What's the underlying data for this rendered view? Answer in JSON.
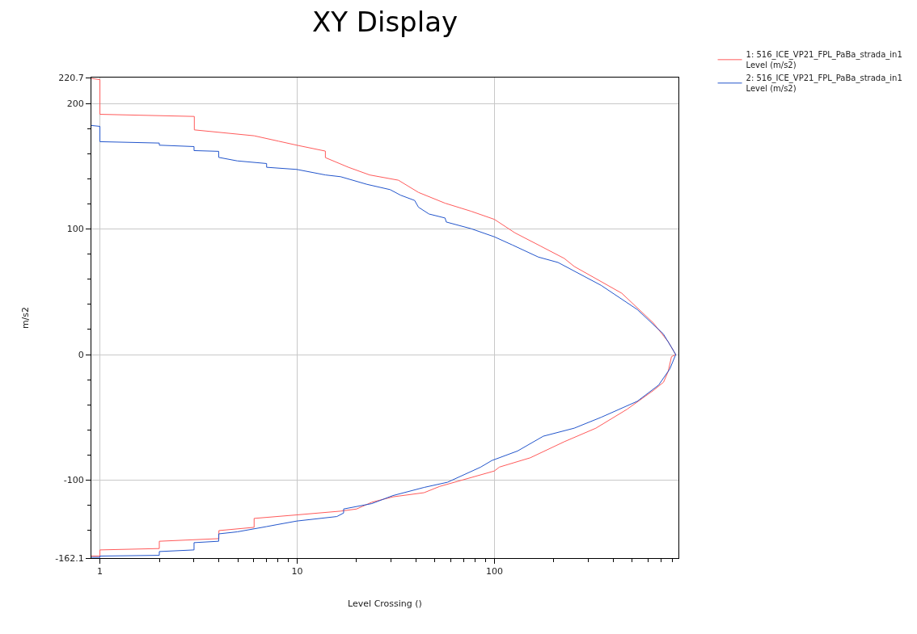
{
  "chart_data": {
    "type": "line",
    "title": "XY Display",
    "xlabel": "Level Crossing ()",
    "ylabel": "m/s2",
    "log": "x",
    "grid": true,
    "legend": "top right",
    "xlim": [
      0.905,
      857
    ],
    "xticks": [
      1,
      10,
      100,
      {
        "value": 2,
        "label": null
      },
      {
        "value": 3,
        "label": null
      },
      {
        "value": 4,
        "label": null
      },
      {
        "value": 5,
        "label": null
      },
      {
        "value": 6,
        "label": null
      },
      {
        "value": 7,
        "label": null
      },
      {
        "value": 8,
        "label": null
      },
      {
        "value": 9,
        "label": null
      },
      {
        "value": 20,
        "label": null
      },
      {
        "value": 30,
        "label": null
      },
      {
        "value": 40,
        "label": null
      },
      {
        "value": 50,
        "label": null
      },
      {
        "value": 60,
        "label": null
      },
      {
        "value": 70,
        "label": null
      },
      {
        "value": 80,
        "label": null
      },
      {
        "value": 90,
        "label": null
      },
      {
        "value": 200,
        "label": null
      },
      {
        "value": 300,
        "label": null
      },
      {
        "value": 400,
        "label": null
      },
      {
        "value": 500,
        "label": null
      },
      {
        "value": 600,
        "label": null
      },
      {
        "value": 700,
        "label": null
      },
      {
        "value": 800,
        "label": null
      }
    ],
    "ylim": [
      -162.1,
      220.7
    ],
    "yticks": [
      -162.1,
      -100,
      0,
      100,
      200,
      220.7,
      {
        "value": -140,
        "label": null
      },
      {
        "value": -120,
        "label": null
      },
      {
        "value": -80,
        "label": null
      },
      {
        "value": -60,
        "label": null
      },
      {
        "value": -40,
        "label": null
      },
      {
        "value": -20,
        "label": null
      },
      {
        "value": 20,
        "label": null
      },
      {
        "value": 40,
        "label": null
      },
      {
        "value": 60,
        "label": null
      },
      {
        "value": 80,
        "label": null
      },
      {
        "value": 120,
        "label": null
      },
      {
        "value": 140,
        "label": null
      },
      {
        "value": 160,
        "label": null
      },
      {
        "value": 180,
        "label": null
      }
    ],
    "series": [
      {
        "name": "1: 516_ICE_VP21_FPL_PaBa_strada_in1\nLevel (m/s2)",
        "color": "#ff5a5a",
        "x": [
          0.905,
          1,
          1,
          3.01,
          3.01,
          6.05,
          8.05,
          9.95,
          13.9,
          13.9,
          18.2,
          23.3,
          32.6,
          41.2,
          56.2,
          76.1,
          100,
          127,
          172,
          226,
          254,
          442,
          640,
          760,
          830,
          790,
          760,
          720,
          640,
          470,
          327,
          226,
          152,
          106,
          100,
          52.8,
          44,
          30.6,
          23.9,
          20,
          16.6,
          9.95,
          6.05,
          6.05,
          4.01,
          4.01,
          2,
          2,
          1,
          1,
          0.905
        ],
        "values": [
          220,
          219,
          191.4,
          189.7,
          179,
          174.3,
          170,
          166.8,
          162.1,
          156.9,
          149.2,
          143.1,
          138.9,
          129.2,
          120.6,
          114.2,
          107.7,
          97,
          86.3,
          76.6,
          70.2,
          48.9,
          25.1,
          10.3,
          0,
          -1.7,
          -13.5,
          -22,
          -28.5,
          -43.6,
          -58.6,
          -69.4,
          -82.2,
          -89.6,
          -92.7,
          -105,
          -110,
          -113.3,
          -117.6,
          -123,
          -124.7,
          -127.7,
          -130.5,
          -137.6,
          -140.2,
          -146.6,
          -148.7,
          -154.5,
          -155.6,
          -160.5,
          -160.5
        ]
      },
      {
        "name": "2: 516_ICE_VP21_FPL_PaBa_strada_in1\nLevel (m/s2)",
        "color": "#2255cc",
        "x": [
          0.905,
          1,
          1,
          2,
          2,
          3,
          3,
          4,
          4,
          4.97,
          7,
          7,
          9.95,
          13.9,
          16.6,
          22.6,
          29.6,
          33.4,
          39.4,
          41.2,
          46.6,
          56.2,
          57,
          76.1,
          100,
          123,
          167,
          210,
          347,
          530,
          718,
          790,
          830,
          775,
          680,
          530,
          347,
          254,
          177,
          131,
          97,
          85,
          57.8,
          44,
          30.6,
          23.9,
          17.2,
          17.2,
          15.9,
          9.95,
          7.93,
          7,
          4.97,
          4,
          4,
          3,
          3,
          2,
          2,
          1,
          1,
          0.905
        ],
        "values": [
          182.5,
          181.8,
          169.6,
          168.5,
          166.8,
          165.7,
          162.5,
          161.9,
          157.1,
          154.3,
          152.2,
          149.2,
          147.5,
          143.1,
          141.7,
          135.6,
          131.4,
          127,
          122.8,
          117.4,
          112,
          108.8,
          105.6,
          100.3,
          93.8,
          87.4,
          77.7,
          73.4,
          55.2,
          35.9,
          16.5,
          5.8,
          0,
          -11.4,
          -24.3,
          -37.2,
          -50,
          -58.6,
          -65,
          -76.8,
          -84.4,
          -89.7,
          -101.7,
          -105.8,
          -112.3,
          -118.7,
          -123,
          -126.2,
          -129,
          -132.6,
          -135.4,
          -137,
          -141.2,
          -142.8,
          -148.7,
          -149.8,
          -155.6,
          -156.9,
          -159.9,
          -160.5,
          -161.5,
          -161.5
        ]
      }
    ]
  }
}
